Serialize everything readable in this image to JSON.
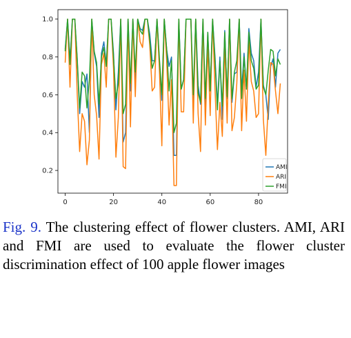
{
  "caption": {
    "figref": "Fig. 9.",
    "text": " The clustering effect of flower clusters. AMI, ARI and FMI are used to evaluate the flower cluster discrimination effect of 100 apple flower images"
  },
  "chart_data": {
    "type": "line",
    "title": "",
    "xlabel": "",
    "ylabel": "",
    "xlim": [
      -3,
      92
    ],
    "ylim": [
      0.08,
      1.05
    ],
    "xticks": [
      0,
      20,
      40,
      60,
      80
    ],
    "yticks": [
      0.2,
      0.4,
      0.6,
      0.8,
      1.0
    ],
    "ytick_labels": [
      "0.2",
      "0.4",
      "0.6",
      "0.8",
      "1.0"
    ],
    "grid": false,
    "legend_position": "lower-right",
    "x": [
      0,
      1,
      2,
      3,
      4,
      5,
      6,
      7,
      8,
      9,
      10,
      11,
      12,
      13,
      14,
      15,
      16,
      17,
      18,
      19,
      20,
      21,
      22,
      23,
      24,
      25,
      26,
      27,
      28,
      29,
      30,
      31,
      32,
      33,
      34,
      35,
      36,
      37,
      38,
      39,
      40,
      41,
      42,
      43,
      44,
      45,
      46,
      47,
      48,
      49,
      50,
      51,
      52,
      53,
      54,
      55,
      56,
      57,
      58,
      59,
      60,
      61,
      62,
      63,
      64,
      65,
      66,
      67,
      68,
      69,
      70,
      71,
      72,
      73,
      74,
      75,
      76,
      77,
      78,
      79,
      80,
      81,
      82,
      83,
      84,
      85,
      86,
      87,
      88,
      89
    ],
    "series": [
      {
        "name": "AMI",
        "color": "#1f77b4",
        "values": [
          0.84,
          1.0,
          0.78,
          1.0,
          1.0,
          0.78,
          0.5,
          0.67,
          0.64,
          0.71,
          0.4,
          1.0,
          0.82,
          0.75,
          0.48,
          0.82,
          0.88,
          0.76,
          1.0,
          1.0,
          0.82,
          0.52,
          0.72,
          1.0,
          0.35,
          0.4,
          1.0,
          0.62,
          1.0,
          0.68,
          1.0,
          0.95,
          0.94,
          1.0,
          1.0,
          0.92,
          0.78,
          0.78,
          1.0,
          0.77,
          0.57,
          1.0,
          0.84,
          0.75,
          0.8,
          0.28,
          0.28,
          1.0,
          0.63,
          0.68,
          1.0,
          1.0,
          1.0,
          0.54,
          1.0,
          0.65,
          0.55,
          1.0,
          0.48,
          0.93,
          0.62,
          1.0,
          0.8,
          0.55,
          0.8,
          0.47,
          0.94,
          0.58,
          1.0,
          0.56,
          0.71,
          0.72,
          1.0,
          0.62,
          0.82,
          0.63,
          0.95,
          0.82,
          0.78,
          0.64,
          0.72,
          1.0,
          0.65,
          0.6,
          0.47,
          0.75,
          0.79,
          0.64,
          0.82,
          0.84
        ]
      },
      {
        "name": "ARI",
        "color": "#ff7f0e",
        "values": [
          0.77,
          1.0,
          0.64,
          1.0,
          1.0,
          0.6,
          0.3,
          0.5,
          0.46,
          0.23,
          0.36,
          1.0,
          0.6,
          0.49,
          0.26,
          0.76,
          0.82,
          0.64,
          1.0,
          1.0,
          0.74,
          0.27,
          0.48,
          1.0,
          0.22,
          0.21,
          1.0,
          0.43,
          1.0,
          0.59,
          1.0,
          0.88,
          0.85,
          1.0,
          1.0,
          0.86,
          0.62,
          0.64,
          1.0,
          0.73,
          0.33,
          1.0,
          0.78,
          0.44,
          0.68,
          0.12,
          0.12,
          1.0,
          0.51,
          0.51,
          1.0,
          1.0,
          1.0,
          0.45,
          1.0,
          0.5,
          0.3,
          1.0,
          0.44,
          0.86,
          0.49,
          1.0,
          0.63,
          0.31,
          0.56,
          0.38,
          0.87,
          0.45,
          1.0,
          0.41,
          0.48,
          0.66,
          1.0,
          0.41,
          0.73,
          0.46,
          0.88,
          0.67,
          0.62,
          0.48,
          0.5,
          1.0,
          0.47,
          0.28,
          0.55,
          0.77,
          0.76,
          0.62,
          0.5,
          0.66
        ]
      },
      {
        "name": "FMI",
        "color": "#2ca02c",
        "values": [
          0.83,
          1.0,
          0.76,
          1.0,
          1.0,
          0.79,
          0.53,
          0.72,
          0.7,
          0.53,
          0.68,
          1.0,
          0.83,
          0.77,
          0.55,
          0.8,
          0.85,
          0.75,
          1.0,
          1.0,
          0.8,
          0.58,
          0.66,
          1.0,
          0.5,
          0.55,
          1.0,
          0.66,
          1.0,
          0.72,
          1.0,
          0.94,
          0.92,
          1.0,
          1.0,
          0.89,
          0.74,
          0.78,
          1.0,
          0.79,
          0.6,
          1.0,
          0.84,
          0.62,
          0.78,
          0.4,
          0.45,
          1.0,
          0.63,
          0.68,
          1.0,
          1.0,
          1.0,
          0.6,
          1.0,
          0.61,
          0.56,
          1.0,
          0.58,
          0.93,
          0.62,
          1.0,
          0.78,
          0.52,
          0.78,
          0.54,
          0.93,
          0.59,
          1.0,
          0.58,
          0.72,
          0.78,
          1.0,
          0.58,
          0.8,
          0.63,
          0.93,
          0.78,
          0.74,
          0.63,
          0.65,
          1.0,
          0.64,
          0.6,
          0.73,
          0.84,
          0.83,
          0.7,
          0.79,
          0.76
        ]
      }
    ]
  }
}
